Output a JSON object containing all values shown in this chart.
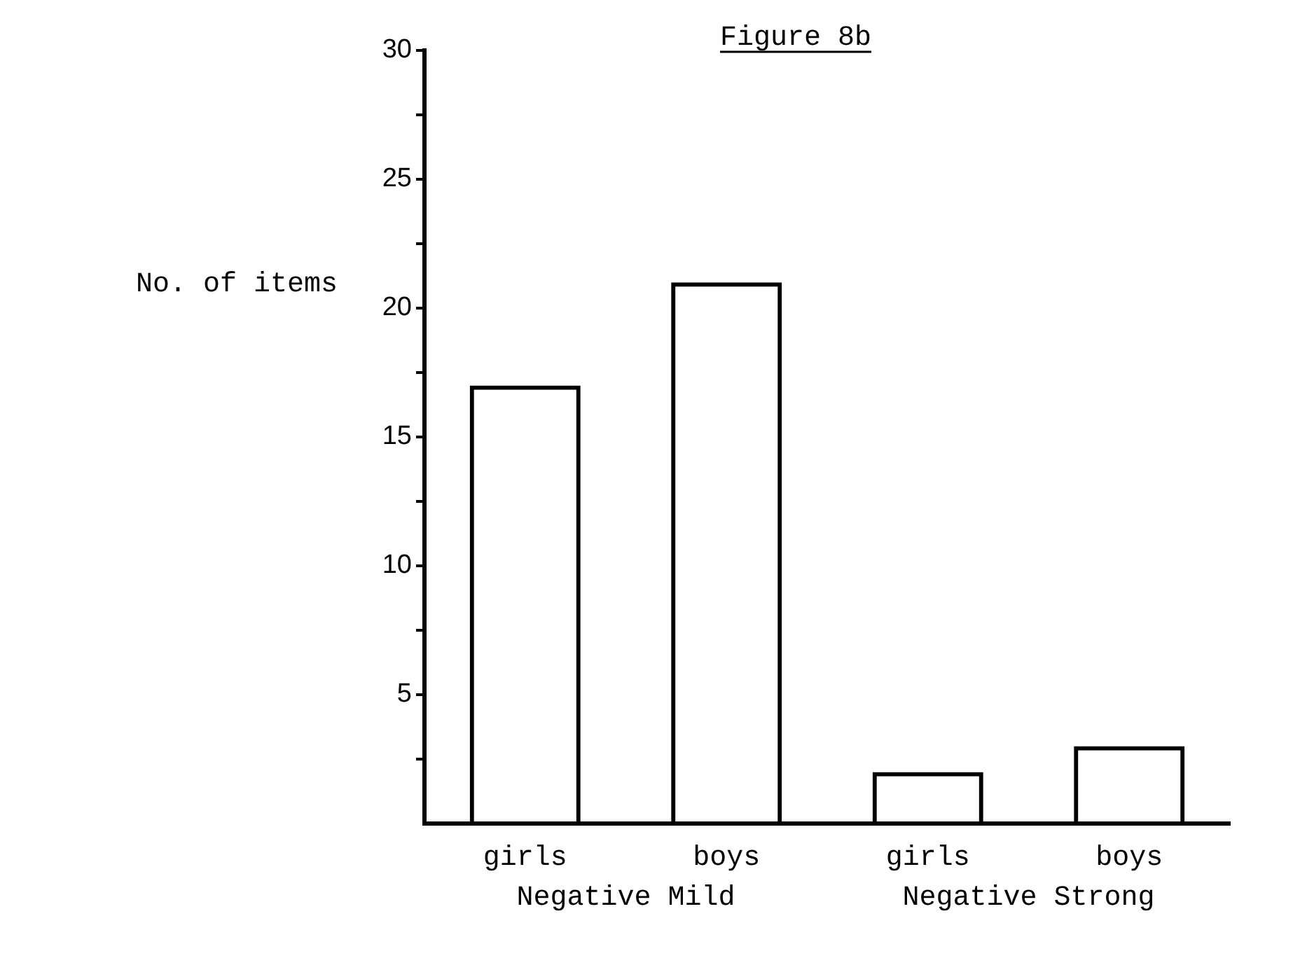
{
  "chart_data": {
    "type": "bar",
    "title": "Figure 8b",
    "ylabel": "No. of items",
    "categories": [
      "girls",
      "boys",
      "girls",
      "boys"
    ],
    "values": [
      17,
      21,
      2,
      3
    ],
    "color": "#000000",
    "annotations": [
      "Negative Mild",
      "Negative Strong"
    ],
    "ylim": [
      0,
      30
    ],
    "yticks": [
      {
        "value": 2.5,
        "label": null
      },
      5,
      {
        "value": 7.5,
        "label": null
      },
      10,
      {
        "value": 12.5,
        "label": null
      },
      15,
      {
        "value": 17.5,
        "label": null
      },
      20,
      {
        "value": 22.5,
        "label": null
      },
      25,
      {
        "value": 27.5,
        "label": null
      },
      30
    ],
    "grid": false,
    "legend": false
  }
}
